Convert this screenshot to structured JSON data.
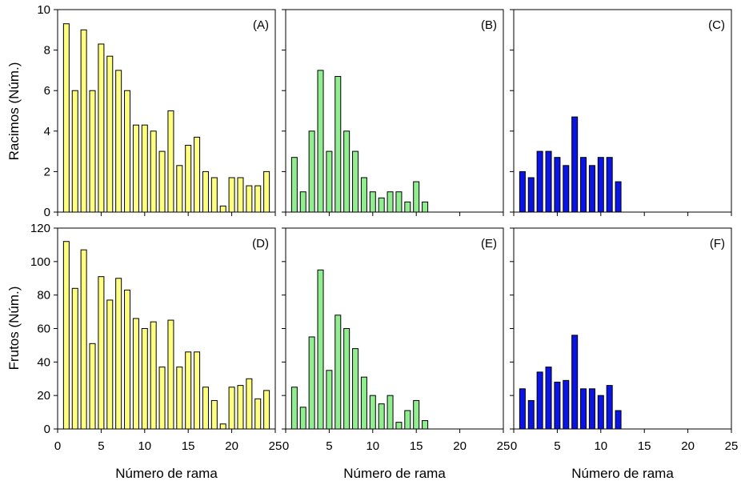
{
  "figure": {
    "row_ylabels": [
      "Racimos (Núm.)",
      "Frutos (Núm.)"
    ],
    "xlabel": "Número de rama"
  },
  "chart_data": [
    {
      "type": "bar",
      "panel": "(A)",
      "row": 0,
      "col": 0,
      "color": "#ffff80",
      "x": [
        1,
        2,
        3,
        4,
        5,
        6,
        7,
        8,
        9,
        10,
        11,
        12,
        13,
        14,
        15,
        16,
        17,
        18,
        19,
        20,
        21,
        22,
        23,
        24
      ],
      "values": [
        9.3,
        6,
        9,
        6,
        8.3,
        7.7,
        7,
        6,
        4.3,
        4.3,
        4,
        3,
        5,
        2.3,
        3.3,
        3.7,
        2,
        1.7,
        0.3,
        1.7,
        1.7,
        1.3,
        1.3,
        2
      ],
      "xlim": [
        0,
        25
      ],
      "ylim": [
        0,
        10
      ],
      "xticks": [
        0,
        5,
        10,
        15,
        20,
        25
      ],
      "yticks": [
        0,
        2,
        4,
        6,
        8,
        10
      ],
      "xlabel": "",
      "ylabel": "Racimos (Núm.)"
    },
    {
      "type": "bar",
      "panel": "(B)",
      "row": 0,
      "col": 1,
      "color": "#90ee90",
      "x": [
        1,
        2,
        3,
        4,
        5,
        6,
        7,
        8,
        9,
        10,
        11,
        12,
        13,
        14,
        15,
        16
      ],
      "values": [
        2.7,
        1,
        4,
        7,
        3,
        6.7,
        4,
        3,
        1.7,
        1,
        0.7,
        1,
        1,
        0.5,
        1.5,
        0.5
      ],
      "xlim": [
        0,
        25
      ],
      "ylim": [
        0,
        10
      ],
      "xticks": [
        0,
        5,
        10,
        15,
        20,
        25
      ],
      "yticks": [
        0,
        2,
        4,
        6,
        8,
        10
      ],
      "xlabel": "",
      "ylabel": ""
    },
    {
      "type": "bar",
      "panel": "(C)",
      "row": 0,
      "col": 2,
      "color": "#0a14e6",
      "x": [
        1,
        2,
        3,
        4,
        5,
        6,
        7,
        8,
        9,
        10,
        11,
        12
      ],
      "values": [
        2,
        1.7,
        3,
        3,
        2.7,
        2.3,
        4.7,
        2.7,
        2.3,
        2.7,
        2.7,
        1.5
      ],
      "xlim": [
        0,
        25
      ],
      "ylim": [
        0,
        10
      ],
      "xticks": [
        0,
        5,
        10,
        15,
        20,
        25
      ],
      "yticks": [
        0,
        2,
        4,
        6,
        8,
        10
      ],
      "xlabel": "",
      "ylabel": ""
    },
    {
      "type": "bar",
      "panel": "(D)",
      "row": 1,
      "col": 0,
      "color": "#ffff80",
      "x": [
        1,
        2,
        3,
        4,
        5,
        6,
        7,
        8,
        9,
        10,
        11,
        12,
        13,
        14,
        15,
        16,
        17,
        18,
        19,
        20,
        21,
        22,
        23,
        24
      ],
      "values": [
        112,
        84,
        107,
        51,
        91,
        77,
        90,
        83,
        66,
        60,
        64,
        37,
        65,
        37,
        46,
        46,
        25,
        17,
        3,
        25,
        26,
        30,
        18,
        23
      ],
      "xlim": [
        0,
        25
      ],
      "ylim": [
        0,
        120
      ],
      "xticks": [
        0,
        5,
        10,
        15,
        20,
        25
      ],
      "yticks": [
        0,
        20,
        40,
        60,
        80,
        100,
        120
      ],
      "xlabel": "Número de rama",
      "ylabel": "Frutos (Núm.)"
    },
    {
      "type": "bar",
      "panel": "(E)",
      "row": 1,
      "col": 1,
      "color": "#90ee90",
      "x": [
        1,
        2,
        3,
        4,
        5,
        6,
        7,
        8,
        9,
        10,
        11,
        12,
        13,
        14,
        15,
        16
      ],
      "values": [
        25,
        13,
        55,
        95,
        35,
        68,
        60,
        48,
        31,
        20,
        15,
        20,
        4,
        11,
        17,
        5
      ],
      "xlim": [
        0,
        25
      ],
      "ylim": [
        0,
        120
      ],
      "xticks": [
        0,
        5,
        10,
        15,
        20,
        25
      ],
      "yticks": [
        0,
        20,
        40,
        60,
        80,
        100,
        120
      ],
      "xlabel": "Número de rama",
      "ylabel": ""
    },
    {
      "type": "bar",
      "panel": "(F)",
      "row": 1,
      "col": 2,
      "color": "#0a14e6",
      "x": [
        1,
        2,
        3,
        4,
        5,
        6,
        7,
        8,
        9,
        10,
        11,
        12
      ],
      "values": [
        24,
        17,
        34,
        37,
        28,
        29,
        56,
        24,
        24,
        20,
        26,
        11
      ],
      "xlim": [
        0,
        25
      ],
      "ylim": [
        0,
        120
      ],
      "xticks": [
        0,
        5,
        10,
        15,
        20,
        25
      ],
      "yticks": [
        0,
        20,
        40,
        60,
        80,
        100,
        120
      ],
      "xlabel": "Número de rama",
      "ylabel": ""
    }
  ]
}
